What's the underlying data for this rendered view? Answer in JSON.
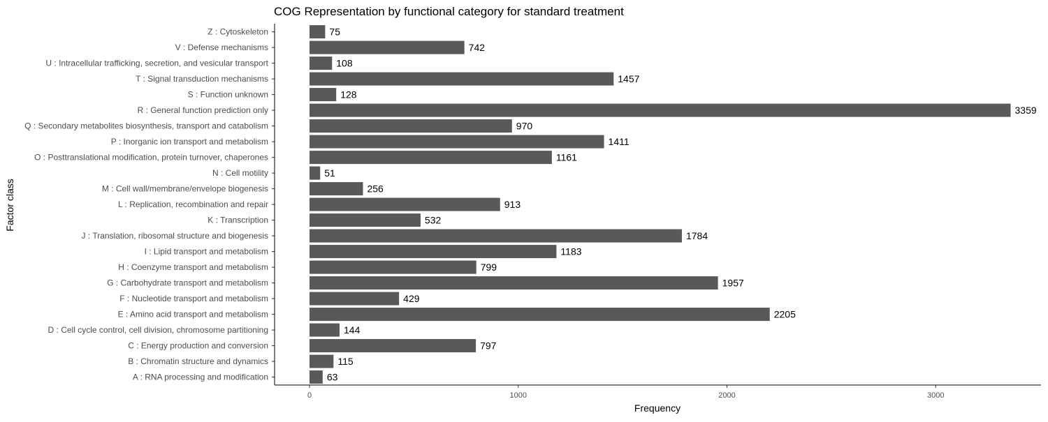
{
  "chart_data": {
    "type": "bar",
    "orientation": "horizontal",
    "title": "COG Representation by functional category for standard treatment",
    "xlabel": "Frequency",
    "ylabel": "Factor class",
    "xlim": [
      0,
      3500
    ],
    "xticks": [
      "0",
      "1000",
      "2000",
      "3000"
    ],
    "xtick_values": [
      0,
      1000,
      2000,
      3000
    ],
    "grid": false,
    "bar_color": "#595959",
    "categories": [
      "Z : Cytoskeleton",
      "V : Defense mechanisms",
      "U : Intracellular trafficking, secretion, and vesicular transport",
      "T : Signal transduction mechanisms",
      "S : Function unknown",
      "R : General function prediction only",
      "Q : Secondary metabolites biosynthesis, transport and catabolism",
      "P : Inorganic ion transport and metabolism",
      "O : Posttranslational modification, protein turnover, chaperones",
      "N : Cell motility",
      "M : Cell wall/membrane/envelope biogenesis",
      "L : Replication, recombination and repair",
      "K : Transcription",
      "J : Translation, ribosomal structure and biogenesis",
      "I : Lipid transport and metabolism",
      "H : Coenzyme transport and metabolism",
      "G : Carbohydrate transport and metabolism",
      "F : Nucleotide transport and metabolism",
      "E : Amino acid transport and metabolism",
      "D : Cell cycle control, cell division, chromosome partitioning",
      "C : Energy production and conversion",
      "B : Chromatin structure and dynamics",
      "A : RNA processing and modification"
    ],
    "values": [
      75,
      742,
      108,
      1457,
      128,
      3359,
      970,
      1411,
      1161,
      51,
      256,
      913,
      532,
      1784,
      1183,
      799,
      1957,
      429,
      2205,
      144,
      797,
      115,
      63
    ],
    "data_labels": [
      "75",
      "742",
      "108",
      "1457",
      "128",
      "3359",
      "970",
      "1411",
      "1161",
      "51",
      "256",
      "913",
      "532",
      "1784",
      "1183",
      "799",
      "1957",
      "429",
      "2205",
      "144",
      "797",
      "115",
      "63"
    ]
  }
}
